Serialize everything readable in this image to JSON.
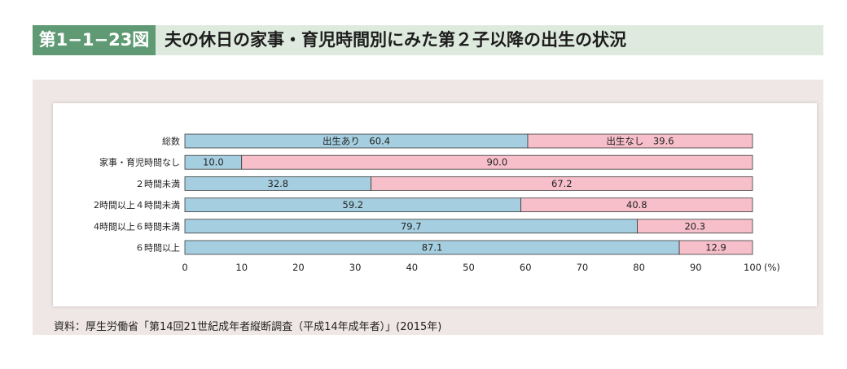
{
  "header": {
    "figure_number": "第1−1−23図",
    "title": "夫の休日の家事・育児時間別にみた第２子以降の出生の状況"
  },
  "source_note": "資料：厚生労働省「第14回21世紀成年者縦断調査（平成14年成年者）」(2015年)",
  "chart_data": {
    "type": "bar",
    "orientation": "horizontal",
    "stacked": true,
    "categories": [
      "総数",
      "家事・育児時間なし",
      "２時間未満",
      "2時間以上４時間未満",
      "4時間以上６時間未満",
      "６時間以上"
    ],
    "series": [
      {
        "name": "出生あり",
        "values": [
          60.4,
          10.0,
          32.8,
          59.2,
          79.7,
          87.1
        ],
        "color": "#a5cfe0"
      },
      {
        "name": "出生なし",
        "values": [
          39.6,
          90.0,
          67.2,
          40.8,
          20.3,
          12.9
        ],
        "color": "#f7bfc9"
      }
    ],
    "data_labels": [
      [
        "出生あり　60.4",
        "10.0",
        "32.8",
        "59.2",
        "79.7",
        "87.1"
      ],
      [
        "出生なし　39.6",
        "90.0",
        "67.2",
        "40.8",
        "20.3",
        "12.9"
      ]
    ],
    "x_ticks": [
      "0",
      "10",
      "20",
      "30",
      "40",
      "50",
      "60",
      "70",
      "80",
      "90",
      "100"
    ],
    "x_unit": "(%)",
    "xlim": [
      0,
      100
    ],
    "grid": false,
    "legend": "none"
  }
}
